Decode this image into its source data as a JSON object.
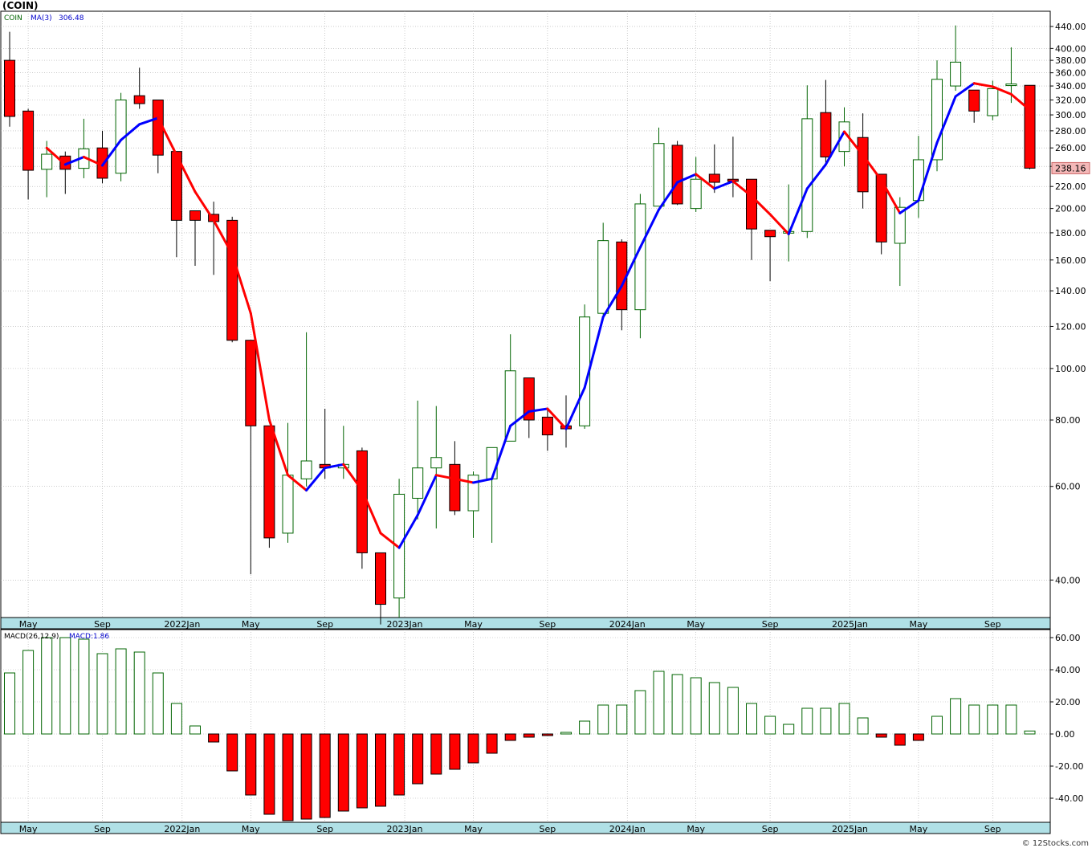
{
  "title": "(COIN)",
  "copyright": "© 12Stocks.com",
  "colors": {
    "up_candle": "#006400",
    "down_candle": "#ff0000",
    "ma_up": "#0000ff",
    "ma_down": "#ff0000",
    "grid": "#aaaaaa",
    "axis_bar": "#b0e0e6",
    "price_label_bg": "#f4b8b8"
  },
  "chart_data": [
    {
      "type": "candlestick",
      "symbol": "COIN",
      "legend": {
        "symbol_label": "COIN",
        "ma_label": "MA(3)",
        "ma_value": "306.48"
      },
      "last_price_label": "238.16",
      "y_scale": "log",
      "ylim": [
        34,
        470
      ],
      "y_ticks": [
        "40.00",
        "60.00",
        "80.00",
        "100.00",
        "120.00",
        "140.00",
        "160.00",
        "180.00",
        "200.00",
        "220.00",
        "240.00",
        "260.00",
        "280.00",
        "300.00",
        "320.00",
        "340.00",
        "360.00",
        "380.00",
        "400.00",
        "440.00"
      ],
      "x_labels": [
        "May",
        "Sep",
        "2022Jan",
        "May",
        "Sep",
        "2023Jan",
        "May",
        "Sep",
        "2024Jan",
        "May",
        "Sep",
        "2025Jan",
        "May",
        "Sep"
      ],
      "grid": true,
      "candles": [
        {
          "o": 380,
          "h": 430,
          "l": 285,
          "c": 298
        },
        {
          "o": 305,
          "h": 308,
          "l": 208,
          "c": 236
        },
        {
          "o": 237,
          "h": 268,
          "l": 210,
          "c": 253
        },
        {
          "o": 251,
          "h": 256,
          "l": 213,
          "c": 237
        },
        {
          "o": 238,
          "h": 295,
          "l": 228,
          "c": 259
        },
        {
          "o": 260,
          "h": 280,
          "l": 223,
          "c": 228
        },
        {
          "o": 233,
          "h": 330,
          "l": 225,
          "c": 320
        },
        {
          "o": 326,
          "h": 368,
          "l": 308,
          "c": 315
        },
        {
          "o": 320,
          "h": 320,
          "l": 233,
          "c": 252
        },
        {
          "o": 256,
          "h": 256,
          "l": 162,
          "c": 190
        },
        {
          "o": 198,
          "h": 198,
          "l": 156,
          "c": 190
        },
        {
          "o": 195,
          "h": 206,
          "l": 150,
          "c": 189
        },
        {
          "o": 190,
          "h": 193,
          "l": 112,
          "c": 113
        },
        {
          "o": 113,
          "h": 113,
          "l": 41,
          "c": 78
        },
        {
          "o": 78,
          "h": 78,
          "l": 46,
          "c": 48
        },
        {
          "o": 49,
          "h": 79,
          "l": 47,
          "c": 63
        },
        {
          "o": 62,
          "h": 117,
          "l": 60,
          "c": 67
        },
        {
          "o": 66,
          "h": 84,
          "l": 62,
          "c": 65
        },
        {
          "o": 65,
          "h": 78,
          "l": 62,
          "c": 66
        },
        {
          "o": 70,
          "h": 71,
          "l": 42,
          "c": 45
        },
        {
          "o": 45,
          "h": 45,
          "l": 33,
          "c": 36
        },
        {
          "o": 37,
          "h": 62,
          "l": 34,
          "c": 58
        },
        {
          "o": 57,
          "h": 87,
          "l": 52,
          "c": 65
        },
        {
          "o": 65,
          "h": 85,
          "l": 50,
          "c": 68
        },
        {
          "o": 66,
          "h": 73,
          "l": 53,
          "c": 54
        },
        {
          "o": 54,
          "h": 64,
          "l": 48,
          "c": 63
        },
        {
          "o": 62,
          "h": 68,
          "l": 47,
          "c": 71
        },
        {
          "o": 73,
          "h": 116,
          "l": 73,
          "c": 99
        },
        {
          "o": 96,
          "h": 96,
          "l": 74,
          "c": 80
        },
        {
          "o": 81,
          "h": 84,
          "l": 70,
          "c": 75
        },
        {
          "o": 78,
          "h": 89,
          "l": 71,
          "c": 77
        },
        {
          "o": 78,
          "h": 132,
          "l": 77,
          "c": 125
        },
        {
          "o": 127,
          "h": 188,
          "l": 126,
          "c": 174
        },
        {
          "o": 173,
          "h": 175,
          "l": 118,
          "c": 129
        },
        {
          "o": 129,
          "h": 213,
          "l": 114,
          "c": 204
        },
        {
          "o": 202,
          "h": 284,
          "l": 202,
          "c": 265
        },
        {
          "o": 263,
          "h": 268,
          "l": 203,
          "c": 204
        },
        {
          "o": 200,
          "h": 250,
          "l": 197,
          "c": 227
        },
        {
          "o": 232,
          "h": 264,
          "l": 214,
          "c": 224
        },
        {
          "o": 227,
          "h": 273,
          "l": 210,
          "c": 225
        },
        {
          "o": 227,
          "h": 227,
          "l": 160,
          "c": 183
        },
        {
          "o": 182,
          "h": 182,
          "l": 146,
          "c": 177
        },
        {
          "o": 180,
          "h": 222,
          "l": 159,
          "c": 181
        },
        {
          "o": 181,
          "h": 341,
          "l": 176,
          "c": 295
        },
        {
          "o": 303,
          "h": 349,
          "l": 240,
          "c": 250
        },
        {
          "o": 256,
          "h": 310,
          "l": 240,
          "c": 291
        },
        {
          "o": 272,
          "h": 302,
          "l": 200,
          "c": 215
        },
        {
          "o": 232,
          "h": 232,
          "l": 164,
          "c": 173
        },
        {
          "o": 172,
          "h": 210,
          "l": 143,
          "c": 201
        },
        {
          "o": 207,
          "h": 274,
          "l": 192,
          "c": 247
        },
        {
          "o": 247,
          "h": 380,
          "l": 235,
          "c": 350
        },
        {
          "o": 340,
          "h": 442,
          "l": 333,
          "c": 377
        },
        {
          "o": 334,
          "h": 334,
          "l": 290,
          "c": 305
        },
        {
          "o": 299,
          "h": 348,
          "l": 293,
          "c": 336
        },
        {
          "o": 343,
          "h": 402,
          "l": 316,
          "c": 343
        },
        {
          "o": 341,
          "h": 341,
          "l": 237,
          "c": 238.16
        }
      ],
      "ma3": [
        null,
        null,
        260,
        242,
        250,
        241,
        269,
        288,
        296,
        252,
        215,
        190,
        164,
        127,
        80,
        63,
        59,
        65,
        66,
        59,
        49,
        46,
        53,
        63,
        62,
        61,
        62,
        78,
        83,
        84,
        77,
        92,
        125,
        143,
        169,
        199,
        224,
        232,
        218,
        225,
        211,
        195,
        179,
        218,
        242,
        279,
        252,
        226,
        196,
        207,
        266,
        325,
        344,
        339,
        328,
        306.48
      ]
    },
    {
      "type": "bar",
      "indicator": "MACD",
      "legend": {
        "label": "MACD(26,12,9)",
        "value_label": "MACD:1.86"
      },
      "ylim": [
        -55,
        65
      ],
      "y_ticks": [
        "60.00",
        "40.00",
        "20.00",
        "0.00",
        "-20.00",
        "-40.00"
      ],
      "x_labels": [
        "May",
        "Sep",
        "2022Jan",
        "May",
        "Sep",
        "2023Jan",
        "May",
        "Sep",
        "2024Jan",
        "May",
        "Sep",
        "2025Jan",
        "May",
        "Sep"
      ],
      "values": [
        38,
        52,
        60,
        60,
        59,
        50,
        53,
        51,
        38,
        19,
        5,
        -5,
        -23,
        -38,
        -50,
        -54,
        -53,
        -52,
        -48,
        -46,
        -45,
        -38,
        -31,
        -25,
        -22,
        -18,
        -12,
        -4,
        -2,
        -1,
        1,
        8,
        18,
        18,
        27,
        39,
        37,
        35,
        32,
        29,
        19,
        11,
        6,
        16,
        16,
        19,
        10,
        -2,
        -7,
        -4,
        11,
        22,
        18,
        18,
        18,
        1.86
      ],
      "grid": true
    }
  ]
}
